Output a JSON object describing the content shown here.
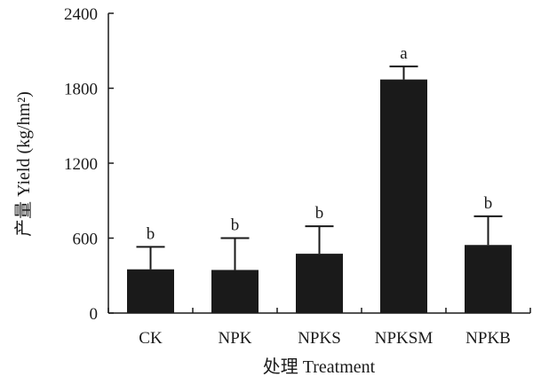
{
  "chart_data": {
    "type": "bar",
    "title": "",
    "xlabel": "处理 Treatment",
    "ylabel": "产量 Yield (kg/hm²)",
    "ylim": [
      0,
      2400
    ],
    "yticks": [
      0,
      600,
      1200,
      1800,
      2400
    ],
    "grid": false,
    "categories": [
      "CK",
      "NPK",
      "NPKS",
      "NPKSM",
      "NPKB"
    ],
    "values": [
      350,
      345,
      475,
      1870,
      545
    ],
    "errors": [
      180,
      255,
      220,
      105,
      230
    ],
    "significance": [
      "b",
      "b",
      "b",
      "a",
      "b"
    ],
    "bar_color": "#1a1a1a"
  }
}
